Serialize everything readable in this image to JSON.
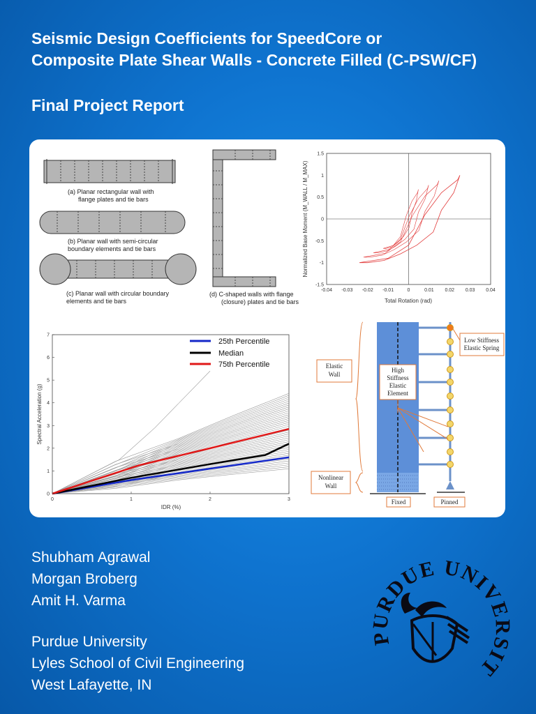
{
  "title_line1": "Seismic Design Coefficients for SpeedCore or",
  "title_line2": "Composite Plate Shear Walls - Concrete Filled (C-PSW/CF)",
  "subtitle": "Final Project Report",
  "figures": {
    "wall_a": {
      "line1": "(a)  Planar rectangular wall with",
      "line2": "flange plates and tie bars"
    },
    "wall_b": {
      "line1": "(b) Planar wall with semi-circular",
      "line2": "boundary elements and tie bars"
    },
    "wall_c": {
      "line1": "(c) Planar wall with circular boundary",
      "line2": "elements and tie bars"
    },
    "wall_d": {
      "line1": "(d) C-shaped walls with flange",
      "line2": "(closure) plates and tie bars"
    },
    "model": {
      "label_elastic_wall": [
        "Elastic",
        "Wall"
      ],
      "label_high_stiffness": [
        "High",
        "Stiffness",
        "Elastic",
        "Element"
      ],
      "label_low_stiffness": [
        "Low Stiffness",
        "Elastic Spring"
      ],
      "label_nonlinear_wall": [
        "Nonlinear",
        "Wall"
      ],
      "label_fixed": "Fixed",
      "label_pinned": "Pinned"
    }
  },
  "chart_data": [
    {
      "type": "line",
      "title": "",
      "xlabel": "Total Rotation (rad)",
      "ylabel": "Normalized Base Moment (M_WALL / M_MAX)",
      "xlim": [
        -0.04,
        0.04
      ],
      "ylim": [
        -1.5,
        1.5
      ],
      "xticks": [
        "-0.04",
        "-0.03",
        "-0.02",
        "-0.01",
        "0",
        "0.01",
        "0.02",
        "0.03",
        "0.04"
      ],
      "yticks": [
        "1.5",
        "1",
        "0.5",
        "0",
        "-0.5",
        "-1",
        "-1.5"
      ],
      "series": [
        {
          "color": "#e23b3b",
          "x": [
            -0.024,
            -0.01,
            0.0,
            0.008,
            0.016,
            0.024,
            0.025,
            0.022,
            0.016,
            0.012,
            0.004,
            -0.004,
            -0.012,
            -0.02,
            -0.024
          ],
          "y": [
            -1.0,
            -0.9,
            -0.6,
            0.1,
            0.6,
            0.9,
            1.0,
            0.6,
            0.2,
            -0.3,
            -0.6,
            -0.8,
            -0.95,
            -1.0,
            -1.0
          ]
        }
      ]
    },
    {
      "type": "line",
      "title": "",
      "xlabel": "IDR (%)",
      "ylabel": "Spectral Acceleration (g)",
      "xlim": [
        0,
        3
      ],
      "ylim": [
        0,
        7
      ],
      "xticks": [
        "0",
        "1",
        "2",
        "3"
      ],
      "yticks": [
        "0",
        "1",
        "2",
        "3",
        "4",
        "5",
        "6",
        "7"
      ],
      "series": [
        {
          "name": "25th Percentile",
          "color": "#1428c8",
          "x": [
            0,
            1,
            2,
            3
          ],
          "y": [
            0,
            0.6,
            1.1,
            1.6
          ]
        },
        {
          "name": "Median",
          "color": "#000000",
          "x": [
            0,
            1,
            2,
            2.7,
            3
          ],
          "y": [
            0,
            0.7,
            1.3,
            1.7,
            2.2
          ]
        },
        {
          "name": "75th Percentile",
          "color": "#e01818",
          "x": [
            0,
            1.1,
            2,
            3
          ],
          "y": [
            0,
            1.25,
            2.0,
            2.85
          ]
        }
      ]
    }
  ],
  "authors": [
    "Shubham Agrawal",
    "Morgan Broberg",
    "Amit H. Varma"
  ],
  "affiliation": [
    "Purdue University",
    "Lyles School of Civil Engineering",
    "West Lafayette, IN"
  ],
  "logo": {
    "text": "PURDUE UNIVERSITY",
    "icon": "purdue-seal-icon"
  }
}
